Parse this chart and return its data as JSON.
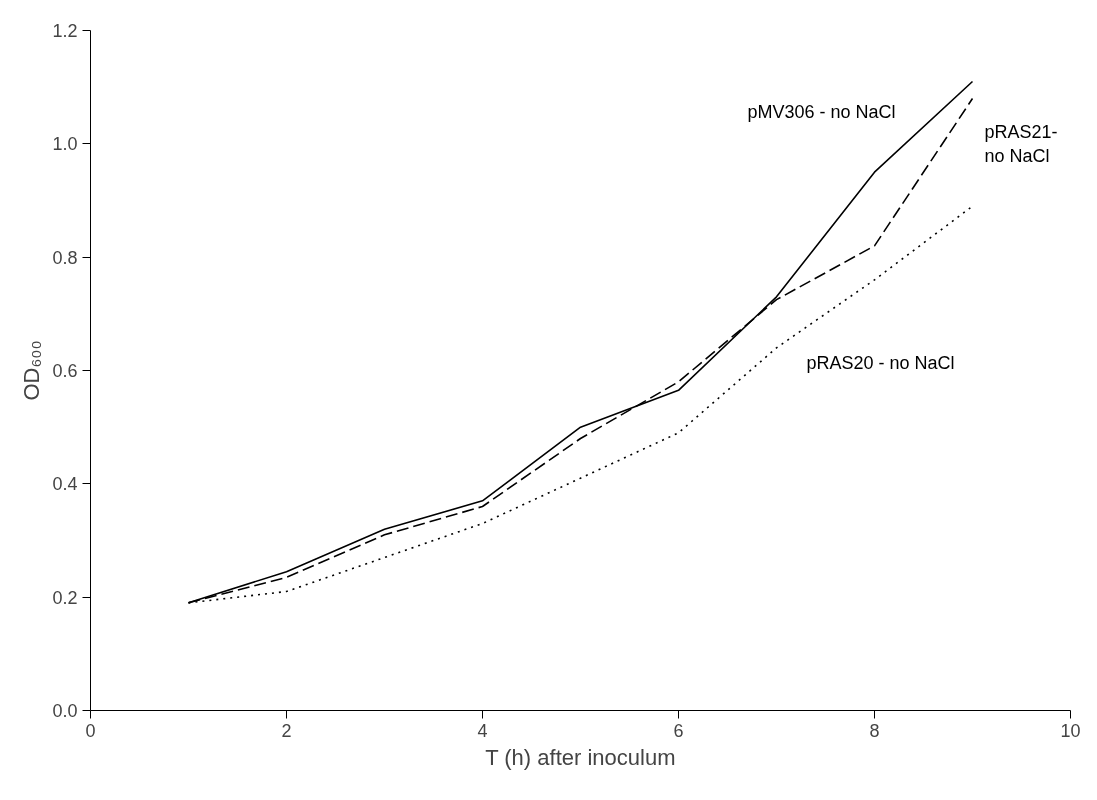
{
  "chart_data": {
    "type": "line",
    "xlabel": "T (h) after inoculum",
    "ylabel": "OD₆₀₀",
    "x": [
      1,
      2,
      3,
      4,
      5,
      6,
      7,
      8,
      9
    ],
    "series": [
      {
        "name": "pMV306 - no NaCl",
        "color": "#000000",
        "line_style": "solid",
        "values": [
          0.19,
          0.245,
          0.32,
          0.37,
          0.5,
          0.565,
          0.73,
          0.95,
          1.11
        ]
      },
      {
        "name": "pRAS21-\nno NaCl",
        "color": "#000000",
        "line_style": "dashed",
        "values": [
          0.19,
          0.235,
          0.31,
          0.36,
          0.48,
          0.58,
          0.725,
          0.82,
          1.08
        ]
      },
      {
        "name": "pRAS20 - no NaCl",
        "color": "#000000",
        "line_style": "dotted",
        "values": [
          0.19,
          0.21,
          0.27,
          0.33,
          0.41,
          0.49,
          0.64,
          0.76,
          0.89
        ]
      }
    ],
    "xlim": [
      0,
      10
    ],
    "ylim": [
      0,
      1.2
    ],
    "xticks": [
      0,
      2,
      4,
      6,
      8,
      10
    ],
    "yticks": [
      {
        "value": 0,
        "label": "0.0"
      },
      0.2,
      0.4,
      0.6,
      0.8,
      {
        "value": 1.0,
        "label": "1.0"
      },
      1.2
    ],
    "grid": false,
    "marker": "none"
  }
}
